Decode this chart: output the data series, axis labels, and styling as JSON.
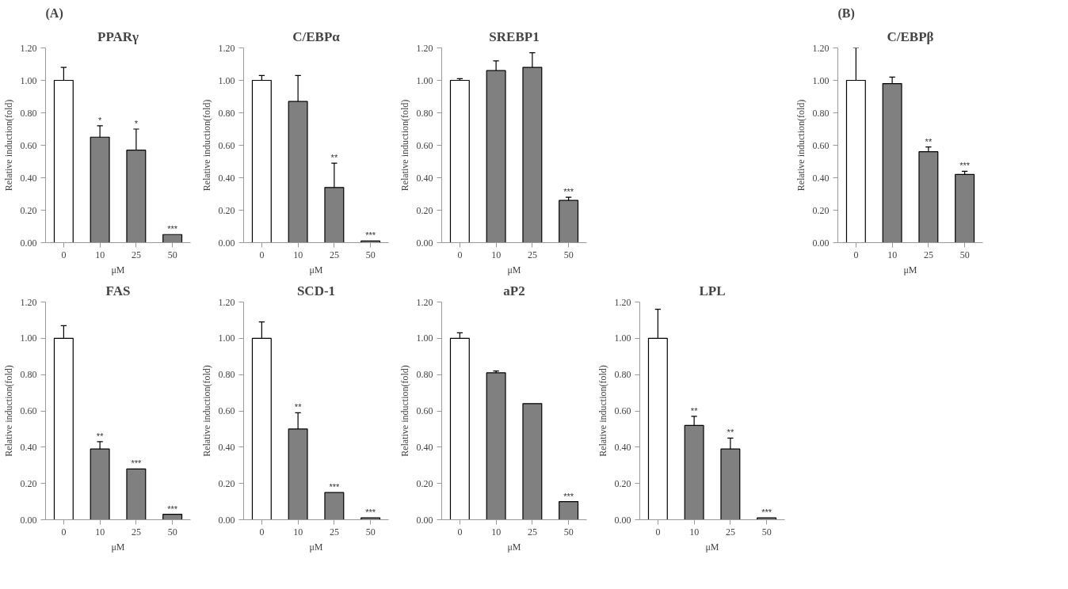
{
  "chart_data": [
    {
      "type": "bar",
      "title": "PPARγ",
      "categories": [
        "0",
        "10",
        "25",
        "50"
      ],
      "xlabel": "μM",
      "ylabel": "Relative induction(fold)",
      "values": [
        1.0,
        0.65,
        0.57,
        0.05
      ],
      "colors": [
        "#ffffff",
        "#808080",
        "#808080",
        "#808080"
      ],
      "errors": [
        [
          1.0,
          1.08
        ],
        [
          0.65,
          0.72
        ],
        [
          0.57,
          0.7
        ],
        null
      ],
      "ylim": [
        0,
        1.2
      ],
      "yticks": [
        {
          "value": 0,
          "label": "0.00"
        },
        {
          "value": 0.2,
          "label": "0.20"
        },
        {
          "value": 0.4,
          "label": "0.40"
        },
        {
          "value": 0.6,
          "label": "0.60"
        },
        {
          "value": 0.8,
          "label": "0.80"
        },
        {
          "value": 1.0,
          "label": "1.00"
        },
        {
          "value": 1.2,
          "label": "1.20"
        }
      ],
      "grid": false,
      "annotations": [
        "(A)",
        {
          "text": "*",
          "x": "10",
          "y": 0.72
        },
        {
          "text": "*",
          "x": "25",
          "y": 0.7
        },
        {
          "text": "***",
          "x": "50",
          "y": 0.05
        }
      ]
    },
    {
      "type": "bar",
      "title": "C/EBPα",
      "categories": [
        "0",
        "10",
        "25",
        "50"
      ],
      "xlabel": "μM",
      "ylabel": "Relative induction(fold)",
      "values": [
        1.0,
        0.87,
        0.34,
        0.01
      ],
      "colors": [
        "#ffffff",
        "#808080",
        "#808080",
        "#808080"
      ],
      "errors": [
        [
          1.0,
          1.03
        ],
        [
          0.87,
          1.03
        ],
        [
          0.34,
          0.49
        ],
        null
      ],
      "ylim": [
        0,
        1.2
      ],
      "yticks": [
        {
          "value": 0,
          "label": "0.00"
        },
        {
          "value": 0.2,
          "label": "0.20"
        },
        {
          "value": 0.4,
          "label": "0.40"
        },
        {
          "value": 0.6,
          "label": "0.60"
        },
        {
          "value": 0.8,
          "label": "0.80"
        },
        {
          "value": 1.0,
          "label": "1.00"
        },
        {
          "value": 1.2,
          "label": "1.20"
        }
      ],
      "grid": false,
      "annotations": [
        {
          "text": "**",
          "x": "25",
          "y": 0.49
        },
        {
          "text": "***",
          "x": "50",
          "y": 0.01
        }
      ]
    },
    {
      "type": "bar",
      "title": "SREBP1",
      "categories": [
        "0",
        "10",
        "25",
        "50"
      ],
      "xlabel": "μM",
      "ylabel": "Relative induction(fold)",
      "values": [
        1.0,
        1.06,
        1.08,
        0.26
      ],
      "colors": [
        "#ffffff",
        "#808080",
        "#808080",
        "#808080"
      ],
      "errors": [
        [
          1.0,
          1.01
        ],
        [
          1.06,
          1.12
        ],
        [
          1.08,
          1.17
        ],
        [
          0.26,
          0.28
        ]
      ],
      "ylim": [
        0,
        1.2
      ],
      "yticks": [
        {
          "value": 0,
          "label": "0.00"
        },
        {
          "value": 0.2,
          "label": "0.20"
        },
        {
          "value": 0.4,
          "label": "0.40"
        },
        {
          "value": 0.6,
          "label": "0.60"
        },
        {
          "value": 0.8,
          "label": "0.80"
        },
        {
          "value": 1.0,
          "label": "1.00"
        },
        {
          "value": 1.2,
          "label": "1.20"
        }
      ],
      "grid": false,
      "annotations": [
        {
          "text": "***",
          "x": "50",
          "y": 0.28
        }
      ]
    },
    {
      "type": "bar",
      "title": "C/EBPβ",
      "categories": [
        "0",
        "10",
        "25",
        "50"
      ],
      "xlabel": "μM",
      "ylabel": "Relative induction(fold)",
      "values": [
        1.0,
        0.98,
        0.56,
        0.42
      ],
      "colors": [
        "#ffffff",
        "#808080",
        "#808080",
        "#808080"
      ],
      "errors": [
        [
          1.0,
          1.2
        ],
        [
          0.98,
          1.02
        ],
        [
          0.56,
          0.59
        ],
        [
          0.42,
          0.44
        ]
      ],
      "ylim": [
        0,
        1.2
      ],
      "yticks": [
        {
          "value": 0,
          "label": "0.00"
        },
        {
          "value": 0.2,
          "label": "0.20"
        },
        {
          "value": 0.4,
          "label": "0.40"
        },
        {
          "value": 0.6,
          "label": "0.60"
        },
        {
          "value": 0.8,
          "label": "0.80"
        },
        {
          "value": 1.0,
          "label": "1.00"
        },
        {
          "value": 1.2,
          "label": "1.20"
        }
      ],
      "grid": false,
      "annotations": [
        "(B)",
        {
          "text": "**",
          "x": "25",
          "y": 0.59
        },
        {
          "text": "***",
          "x": "50",
          "y": 0.44
        }
      ]
    },
    {
      "type": "bar",
      "title": "FAS",
      "categories": [
        "0",
        "10",
        "25",
        "50"
      ],
      "xlabel": "μM",
      "ylabel": "Relative induction(fold)",
      "values": [
        1.0,
        0.39,
        0.28,
        0.03
      ],
      "colors": [
        "#ffffff",
        "#808080",
        "#808080",
        "#808080"
      ],
      "errors": [
        [
          1.0,
          1.07
        ],
        [
          0.39,
          0.43
        ],
        null,
        null
      ],
      "ylim": [
        0,
        1.2
      ],
      "yticks": [
        {
          "value": 0,
          "label": "0.00"
        },
        {
          "value": 0.2,
          "label": "0.20"
        },
        {
          "value": 0.4,
          "label": "0.40"
        },
        {
          "value": 0.6,
          "label": "0.60"
        },
        {
          "value": 0.8,
          "label": "0.80"
        },
        {
          "value": 1.0,
          "label": "1.00"
        },
        {
          "value": 1.2,
          "label": "1.20"
        }
      ],
      "grid": false,
      "annotations": [
        {
          "text": "**",
          "x": "10",
          "y": 0.43
        },
        {
          "text": "***",
          "x": "25",
          "y": 0.28
        },
        {
          "text": "***",
          "x": "50",
          "y": 0.03
        }
      ]
    },
    {
      "type": "bar",
      "title": "SCD-1",
      "categories": [
        "0",
        "10",
        "25",
        "50"
      ],
      "xlabel": "μM",
      "ylabel": "Relative induction(fold)",
      "values": [
        1.0,
        0.5,
        0.15,
        0.01
      ],
      "colors": [
        "#ffffff",
        "#808080",
        "#808080",
        "#808080"
      ],
      "errors": [
        [
          1.0,
          1.09
        ],
        [
          0.5,
          0.59
        ],
        null,
        null
      ],
      "ylim": [
        0,
        1.2
      ],
      "yticks": [
        {
          "value": 0,
          "label": "0.00"
        },
        {
          "value": 0.2,
          "label": "0.20"
        },
        {
          "value": 0.4,
          "label": "0.40"
        },
        {
          "value": 0.6,
          "label": "0.60"
        },
        {
          "value": 0.8,
          "label": "0.80"
        },
        {
          "value": 1.0,
          "label": "1.00"
        },
        {
          "value": 1.2,
          "label": "1.20"
        }
      ],
      "grid": false,
      "annotations": [
        {
          "text": "**",
          "x": "10",
          "y": 0.59
        },
        {
          "text": "***",
          "x": "25",
          "y": 0.15
        },
        {
          "text": "***",
          "x": "50",
          "y": 0.01
        }
      ]
    },
    {
      "type": "bar",
      "title": "aP2",
      "categories": [
        "0",
        "10",
        "25",
        "50"
      ],
      "xlabel": "μM",
      "ylabel": "Relative induction(fold)",
      "values": [
        1.0,
        0.81,
        0.64,
        0.1
      ],
      "colors": [
        "#ffffff",
        "#808080",
        "#808080",
        "#808080"
      ],
      "errors": [
        [
          1.0,
          1.03
        ],
        [
          0.81,
          0.82
        ],
        null,
        null
      ],
      "ylim": [
        0,
        1.2
      ],
      "yticks": [
        {
          "value": 0,
          "label": "0.00"
        },
        {
          "value": 0.2,
          "label": "0.20"
        },
        {
          "value": 0.4,
          "label": "0.40"
        },
        {
          "value": 0.6,
          "label": "0.60"
        },
        {
          "value": 0.8,
          "label": "0.80"
        },
        {
          "value": 1.0,
          "label": "1.00"
        },
        {
          "value": 1.2,
          "label": "1.20"
        }
      ],
      "grid": false,
      "annotations": [
        {
          "text": "***",
          "x": "50",
          "y": 0.1
        }
      ]
    },
    {
      "type": "bar",
      "title": "LPL",
      "categories": [
        "0",
        "10",
        "25",
        "50"
      ],
      "xlabel": "μM",
      "ylabel": "Relative induction(fold)",
      "values": [
        1.0,
        0.52,
        0.39,
        0.01
      ],
      "colors": [
        "#ffffff",
        "#808080",
        "#808080",
        "#808080"
      ],
      "errors": [
        [
          1.0,
          1.16
        ],
        [
          0.52,
          0.57
        ],
        [
          0.39,
          0.45
        ],
        null
      ],
      "ylim": [
        0,
        1.2
      ],
      "yticks": [
        {
          "value": 0,
          "label": "0.00"
        },
        {
          "value": 0.2,
          "label": "0.20"
        },
        {
          "value": 0.4,
          "label": "0.40"
        },
        {
          "value": 0.6,
          "label": "0.60"
        },
        {
          "value": 0.8,
          "label": "0.80"
        },
        {
          "value": 1.0,
          "label": "1.00"
        },
        {
          "value": 1.2,
          "label": "1.20"
        }
      ],
      "grid": false,
      "annotations": [
        {
          "text": "**",
          "x": "10",
          "y": 0.57
        },
        {
          "text": "**",
          "x": "25",
          "y": 0.45
        },
        {
          "text": "***",
          "x": "50",
          "y": 0.01
        }
      ]
    }
  ]
}
